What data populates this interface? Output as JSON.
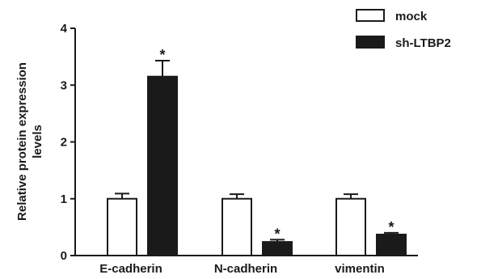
{
  "chart_data": {
    "type": "bar",
    "title": "",
    "xlabel": "",
    "ylabel_lines": [
      "Relative protein expression",
      "levels"
    ],
    "ylim": [
      0,
      4
    ],
    "yticks": [
      "0",
      "1",
      "2",
      "3",
      "4"
    ],
    "categories": [
      "E-cadherin",
      "N-cadherin",
      "vimentin"
    ],
    "series": [
      {
        "name": "mock",
        "values": [
          1.0,
          1.0,
          1.0
        ],
        "errors": [
          0.09,
          0.08,
          0.08
        ],
        "fill": "#ffffff"
      },
      {
        "name": "sh-LTBP2",
        "values": [
          3.15,
          0.24,
          0.37
        ],
        "errors": [
          0.28,
          0.04,
          0.03
        ],
        "fill": "#1a1a1a"
      }
    ],
    "significance_marker": "*",
    "legend_position": "top-right",
    "grid": false
  }
}
